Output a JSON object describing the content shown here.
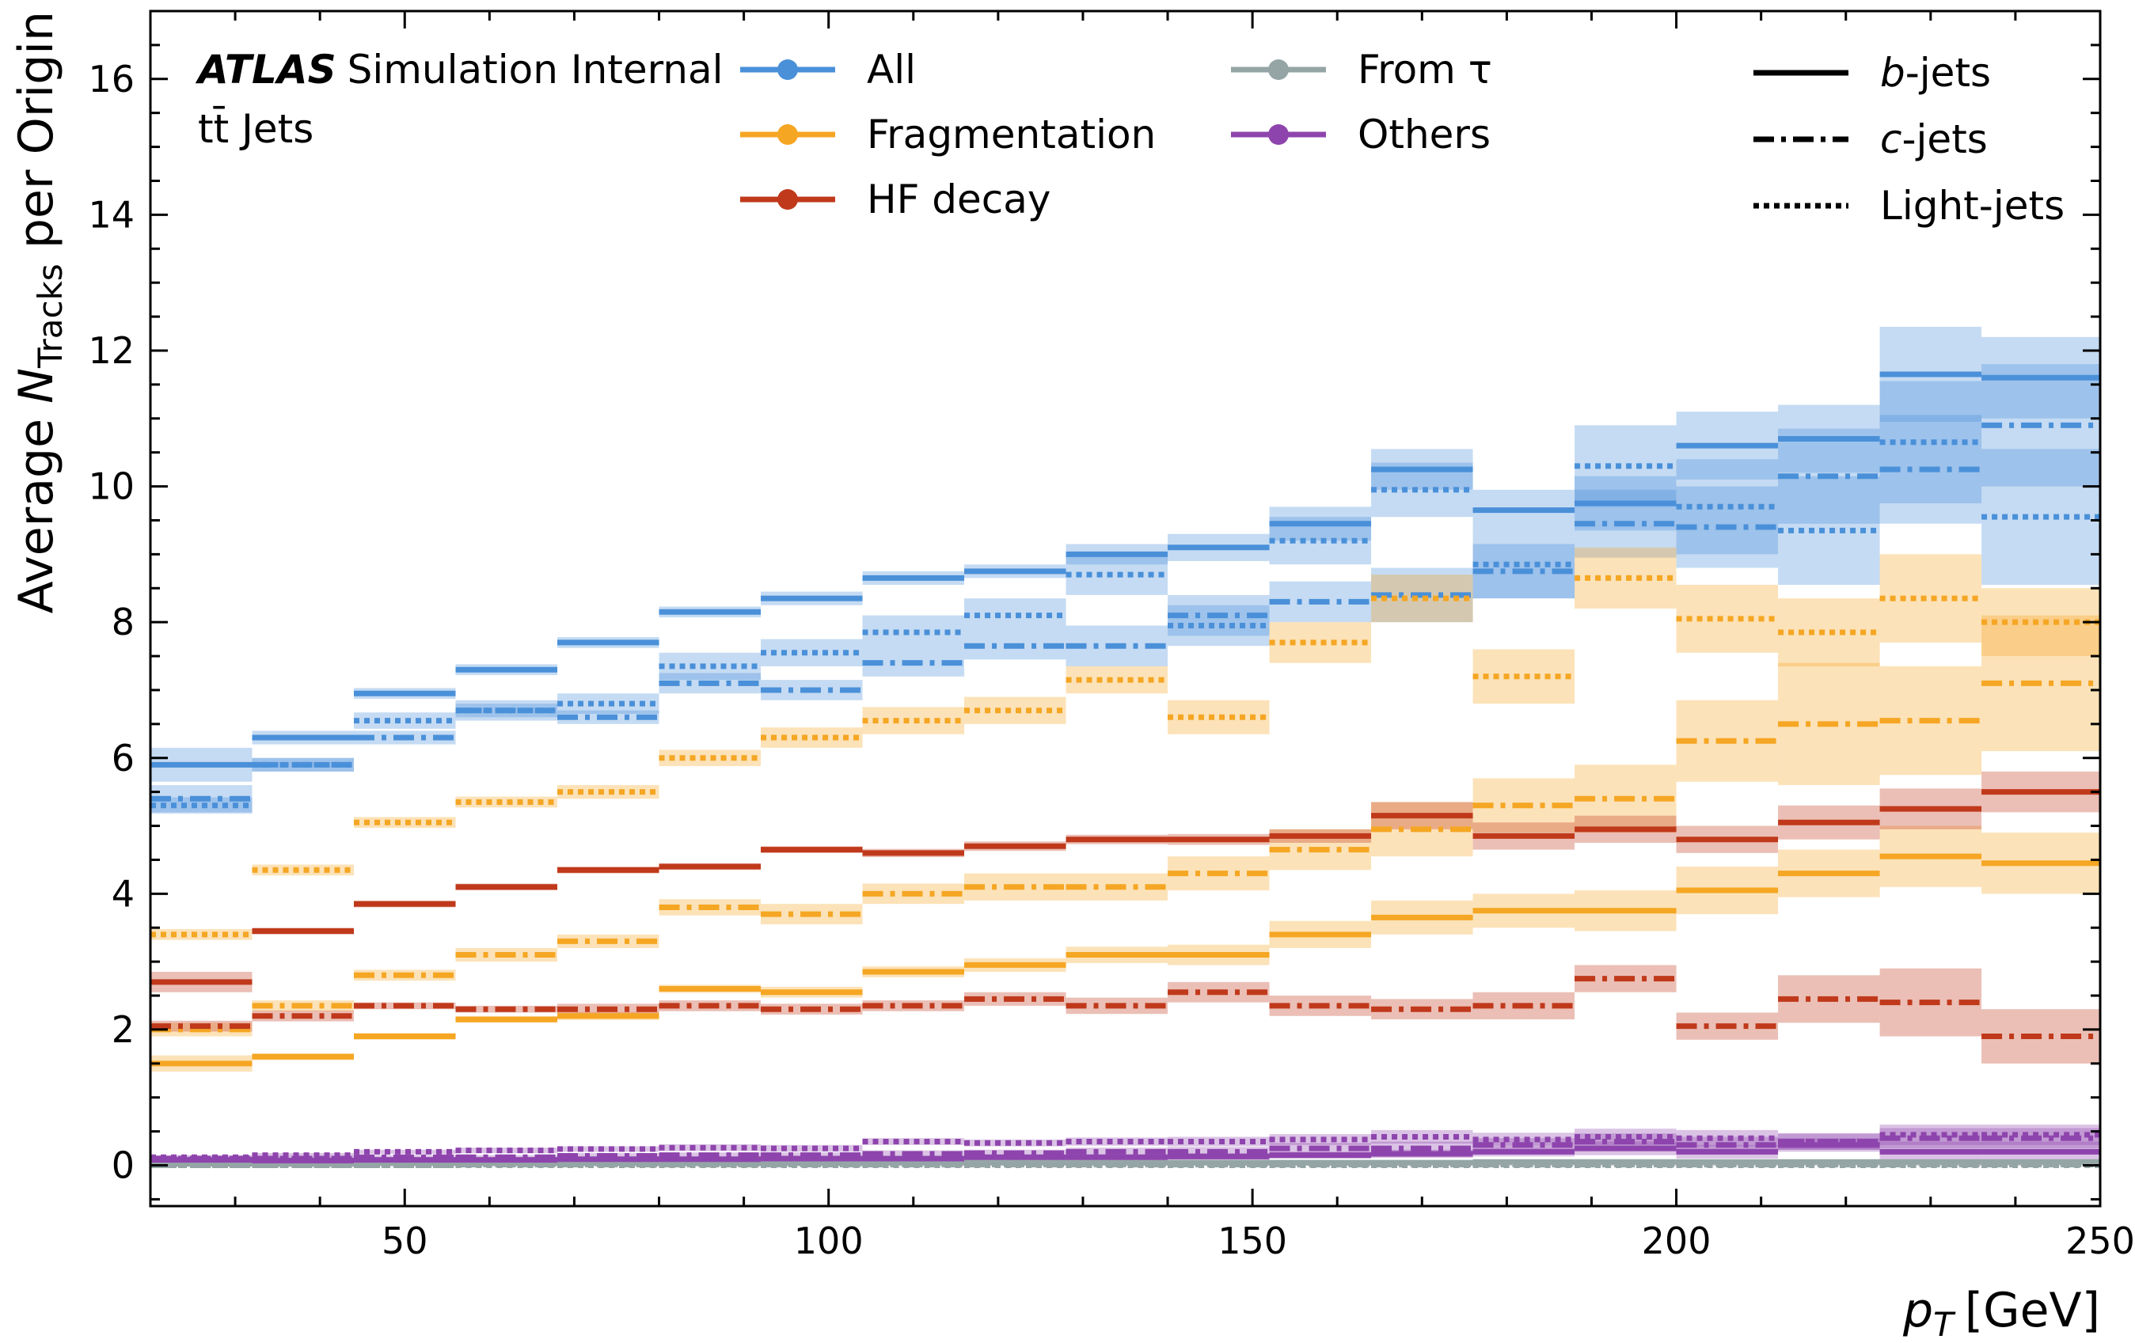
{
  "chart_data": {
    "type": "line",
    "subtype": "step-histogram with uncertainty bands",
    "annotation": {
      "experiment": "ATLAS",
      "status": "Simulation Internal",
      "sample": "tt̄ Jets"
    },
    "xlabel": "p_T [GeV]",
    "xlabel_var": "p",
    "xlabel_sub": "T",
    "xlabel_unit": "[GeV]",
    "ylabel": "Average N_Tracks per Origin",
    "ylabel_pre": "Average ",
    "ylabel_var": "N",
    "ylabel_sub": "Tracks",
    "ylabel_post": " per Origin",
    "xlim": [
      20,
      250
    ],
    "ylim": [
      -0.6,
      17
    ],
    "xticks": [
      50,
      100,
      150,
      200,
      250
    ],
    "yticks": [
      0,
      2,
      4,
      6,
      8,
      10,
      12,
      14,
      16
    ],
    "xtick_labels": [
      "50",
      "100",
      "150",
      "200",
      "250"
    ],
    "ytick_labels": [
      "0",
      "2",
      "4",
      "6",
      "8",
      "10",
      "12",
      "14",
      "16"
    ],
    "x_bin_edges": [
      20,
      32,
      44,
      56,
      68,
      80,
      92,
      104,
      116,
      128,
      140,
      152,
      164,
      176,
      188,
      200,
      212,
      224,
      236,
      250
    ],
    "legend_origin_title": "",
    "legend_origins": [
      {
        "key": "all",
        "label": "All",
        "color": "#4a90d9"
      },
      {
        "key": "frag",
        "label": "Fragmentation",
        "color": "#f5a623"
      },
      {
        "key": "hf",
        "label": "HF decay",
        "color": "#c0391b"
      },
      {
        "key": "tau",
        "label": "From τ",
        "color": "#95a5a6"
      },
      {
        "key": "others",
        "label": "Others",
        "color": "#8e44ad"
      }
    ],
    "legend_jets": [
      {
        "key": "b",
        "label_var": "b",
        "label_rest": "-jets",
        "style": "solid"
      },
      {
        "key": "c",
        "label_var": "c",
        "label_rest": "-jets",
        "style": "dashdot"
      },
      {
        "key": "l",
        "label_var": "",
        "label_rest": "Light-jets",
        "style": "dotted"
      }
    ],
    "series": [
      {
        "origin": "all",
        "jet": "b",
        "values": [
          5.9,
          6.3,
          6.95,
          7.3,
          7.7,
          8.15,
          8.35,
          8.65,
          8.75,
          9.0,
          9.1,
          9.45,
          10.25,
          9.65,
          9.75,
          10.6,
          10.7,
          11.65,
          11.6
        ],
        "errors": [
          0.25,
          0.1,
          0.08,
          0.08,
          0.08,
          0.08,
          0.1,
          0.1,
          0.1,
          0.15,
          0.2,
          0.25,
          0.3,
          0.3,
          0.4,
          0.5,
          0.5,
          0.7,
          0.6
        ]
      },
      {
        "origin": "all",
        "jet": "c",
        "values": [
          5.4,
          5.9,
          6.3,
          6.7,
          6.6,
          7.1,
          7.0,
          7.4,
          7.65,
          7.65,
          8.1,
          8.3,
          8.4,
          8.75,
          9.45,
          9.4,
          10.15,
          10.25,
          10.9
        ],
        "errors": [
          0.2,
          0.1,
          0.1,
          0.1,
          0.1,
          0.15,
          0.15,
          0.2,
          0.2,
          0.3,
          0.3,
          0.3,
          0.4,
          0.4,
          0.5,
          0.6,
          0.7,
          0.8,
          0.9
        ]
      },
      {
        "origin": "all",
        "jet": "l",
        "values": [
          5.3,
          5.9,
          6.55,
          6.7,
          6.8,
          7.35,
          7.55,
          7.85,
          8.1,
          8.7,
          7.95,
          9.2,
          9.95,
          8.85,
          10.3,
          9.7,
          9.35,
          10.65,
          9.55
        ],
        "errors": [
          0.12,
          0.1,
          0.12,
          0.15,
          0.15,
          0.2,
          0.2,
          0.25,
          0.25,
          0.3,
          0.3,
          0.35,
          0.4,
          0.5,
          0.6,
          0.7,
          0.8,
          0.9,
          1.0
        ]
      },
      {
        "origin": "frag",
        "jet": "b",
        "values": [
          1.5,
          1.6,
          1.9,
          2.15,
          2.2,
          2.6,
          2.55,
          2.85,
          2.95,
          3.1,
          3.1,
          3.4,
          3.65,
          3.75,
          3.75,
          4.05,
          4.3,
          4.55,
          4.45
        ],
        "errors": [
          0.12,
          0.05,
          0.05,
          0.05,
          0.06,
          0.06,
          0.08,
          0.08,
          0.1,
          0.12,
          0.15,
          0.2,
          0.25,
          0.25,
          0.3,
          0.35,
          0.35,
          0.45,
          0.45
        ]
      },
      {
        "origin": "frag",
        "jet": "c",
        "values": [
          2.0,
          2.35,
          2.8,
          3.1,
          3.3,
          3.8,
          3.7,
          4.0,
          4.1,
          4.1,
          4.3,
          4.65,
          4.95,
          5.3,
          5.4,
          6.25,
          6.5,
          6.55,
          7.1
        ],
        "errors": [
          0.1,
          0.08,
          0.08,
          0.1,
          0.1,
          0.12,
          0.15,
          0.15,
          0.2,
          0.2,
          0.25,
          0.3,
          0.4,
          0.4,
          0.5,
          0.6,
          0.9,
          0.8,
          1.0
        ]
      },
      {
        "origin": "frag",
        "jet": "l",
        "values": [
          3.4,
          4.35,
          5.05,
          5.35,
          5.5,
          6.0,
          6.3,
          6.55,
          6.7,
          7.15,
          6.6,
          7.7,
          8.35,
          7.2,
          8.65,
          8.05,
          7.85,
          8.35,
          8.0
        ],
        "errors": [
          0.08,
          0.08,
          0.08,
          0.08,
          0.1,
          0.12,
          0.15,
          0.2,
          0.2,
          0.2,
          0.25,
          0.3,
          0.35,
          0.4,
          0.45,
          0.5,
          0.5,
          0.65,
          0.5
        ]
      },
      {
        "origin": "hf",
        "jet": "b",
        "values": [
          2.7,
          3.45,
          3.85,
          4.1,
          4.35,
          4.4,
          4.65,
          4.6,
          4.7,
          4.8,
          4.8,
          4.85,
          5.15,
          4.85,
          4.95,
          4.8,
          5.05,
          5.25,
          5.5
        ],
        "errors": [
          0.15,
          0.05,
          0.05,
          0.05,
          0.05,
          0.05,
          0.05,
          0.06,
          0.07,
          0.07,
          0.08,
          0.1,
          0.2,
          0.2,
          0.2,
          0.2,
          0.25,
          0.3,
          0.3
        ]
      },
      {
        "origin": "hf",
        "jet": "c",
        "values": [
          2.05,
          2.2,
          2.35,
          2.3,
          2.3,
          2.35,
          2.3,
          2.35,
          2.45,
          2.35,
          2.55,
          2.35,
          2.3,
          2.35,
          2.75,
          2.05,
          2.45,
          2.4,
          1.9
        ],
        "errors": [
          0.08,
          0.08,
          0.05,
          0.05,
          0.08,
          0.08,
          0.08,
          0.08,
          0.1,
          0.12,
          0.15,
          0.15,
          0.15,
          0.2,
          0.2,
          0.2,
          0.35,
          0.5,
          0.4
        ]
      },
      {
        "origin": "tau",
        "jet": "b",
        "values": [
          0.02,
          0.02,
          0.03,
          0.03,
          0.03,
          0.03,
          0.03,
          0.04,
          0.04,
          0.04,
          0.04,
          0.04,
          0.04,
          0.05,
          0.05,
          0.05,
          0.05,
          0.05,
          0.05
        ],
        "errors": [
          0.02,
          0.02,
          0.02,
          0.02,
          0.02,
          0.02,
          0.02,
          0.02,
          0.02,
          0.02,
          0.02,
          0.02,
          0.02,
          0.02,
          0.02,
          0.02,
          0.02,
          0.02,
          0.02
        ]
      },
      {
        "origin": "tau",
        "jet": "c",
        "values": [
          0.0,
          0.0,
          0.0,
          0.01,
          0.01,
          0.01,
          0.01,
          0.01,
          0.01,
          0.01,
          0.01,
          0.01,
          0.01,
          0.01,
          0.01,
          0.01,
          0.01,
          0.01,
          0.01
        ],
        "errors": [
          0.01,
          0.01,
          0.01,
          0.01,
          0.01,
          0.01,
          0.01,
          0.01,
          0.01,
          0.01,
          0.01,
          0.01,
          0.01,
          0.01,
          0.01,
          0.01,
          0.01,
          0.01,
          0.01
        ]
      },
      {
        "origin": "tau",
        "jet": "l",
        "values": [
          0.0,
          0.0,
          0.0,
          0.0,
          0.0,
          0.0,
          0.0,
          0.0,
          0.0,
          0.0,
          0.0,
          0.0,
          0.0,
          0.0,
          0.0,
          0.0,
          0.0,
          0.0,
          0.0
        ],
        "errors": [
          0.01,
          0.01,
          0.01,
          0.01,
          0.01,
          0.01,
          0.01,
          0.01,
          0.01,
          0.01,
          0.01,
          0.01,
          0.01,
          0.01,
          0.01,
          0.01,
          0.01,
          0.01,
          0.01
        ]
      },
      {
        "origin": "others",
        "jet": "b",
        "values": [
          0.08,
          0.07,
          0.08,
          0.08,
          0.09,
          0.09,
          0.1,
          0.1,
          0.12,
          0.12,
          0.13,
          0.15,
          0.17,
          0.2,
          0.25,
          0.2,
          0.3,
          0.2,
          0.2
        ],
        "errors": [
          0.03,
          0.02,
          0.02,
          0.02,
          0.02,
          0.02,
          0.02,
          0.03,
          0.03,
          0.04,
          0.05,
          0.05,
          0.06,
          0.07,
          0.1,
          0.1,
          0.1,
          0.15,
          0.15
        ]
      },
      {
        "origin": "others",
        "jet": "c",
        "values": [
          0.1,
          0.1,
          0.12,
          0.12,
          0.14,
          0.15,
          0.15,
          0.17,
          0.18,
          0.2,
          0.2,
          0.25,
          0.25,
          0.3,
          0.35,
          0.3,
          0.35,
          0.4,
          0.4
        ],
        "errors": [
          0.03,
          0.03,
          0.03,
          0.03,
          0.04,
          0.04,
          0.04,
          0.05,
          0.05,
          0.06,
          0.07,
          0.08,
          0.1,
          0.1,
          0.12,
          0.12,
          0.12,
          0.15,
          0.15
        ]
      },
      {
        "origin": "others",
        "jet": "l",
        "values": [
          0.12,
          0.15,
          0.2,
          0.22,
          0.24,
          0.26,
          0.25,
          0.35,
          0.33,
          0.35,
          0.35,
          0.38,
          0.42,
          0.38,
          0.42,
          0.4,
          0.35,
          0.45,
          0.45
        ],
        "errors": [
          0.03,
          0.03,
          0.03,
          0.04,
          0.04,
          0.05,
          0.05,
          0.05,
          0.05,
          0.06,
          0.07,
          0.08,
          0.1,
          0.1,
          0.12,
          0.12,
          0.12,
          0.15,
          0.15
        ]
      }
    ]
  }
}
